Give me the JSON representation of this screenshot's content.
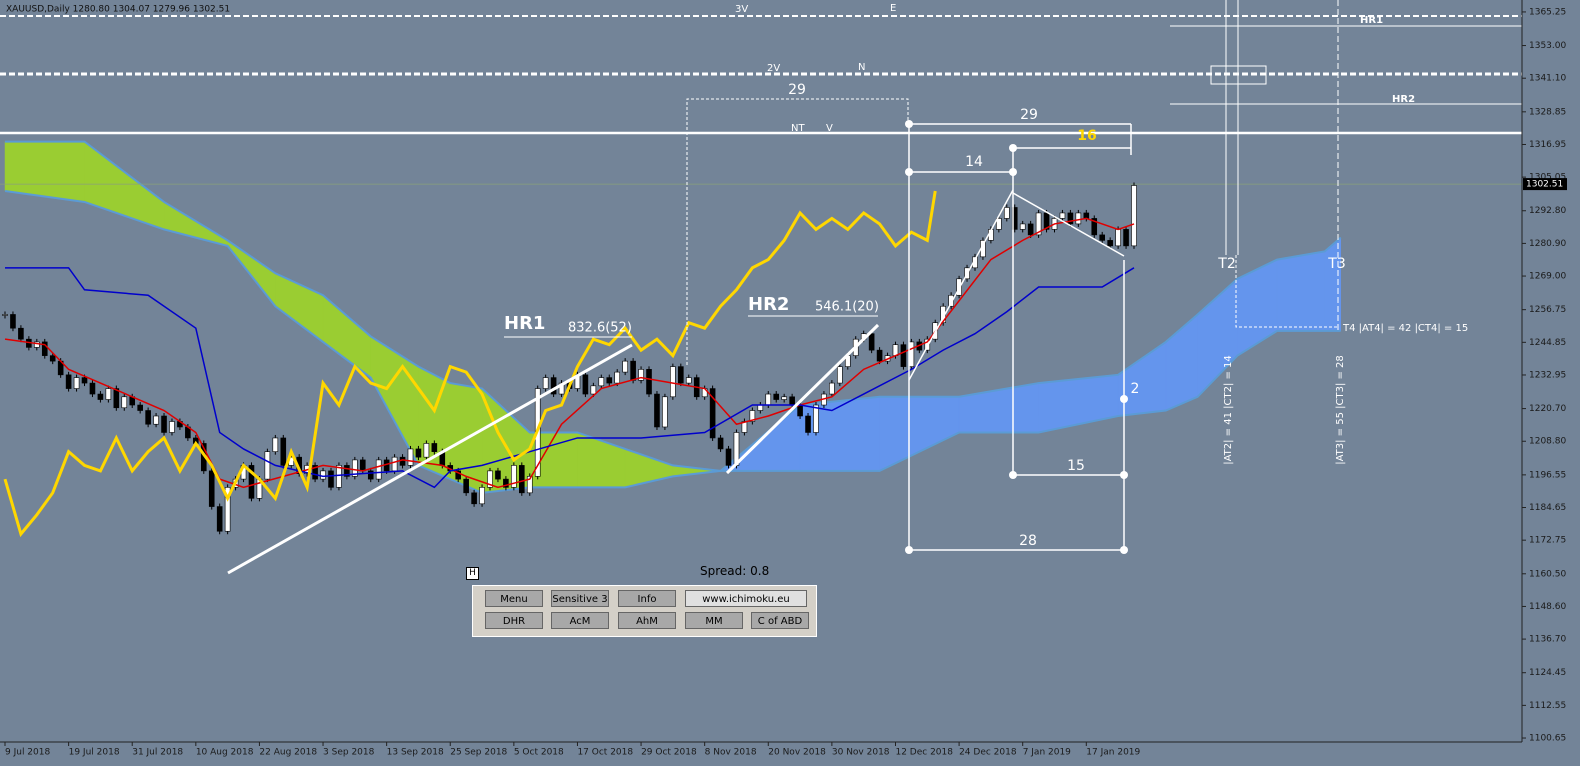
{
  "header": "XAUUSD,Daily  1280.80 1304.07 1279.96 1302.51",
  "chart_data": {
    "type": "candlestick",
    "up_color": "#ffffff",
    "down_color": "#000000",
    "close": [
      1255,
      1250,
      1246,
      1243,
      1245,
      1240,
      1238,
      1233,
      1228,
      1232,
      1230,
      1226,
      1224,
      1228,
      1221,
      1225,
      1222,
      1220,
      1215,
      1218,
      1212,
      1216,
      1214,
      1210,
      1208,
      1198,
      1185,
      1176,
      1192,
      1195,
      1200,
      1188,
      1195,
      1205,
      1210,
      1200,
      1203,
      1197,
      1200,
      1195,
      1198,
      1192,
      1200,
      1196,
      1202,
      1198,
      1195,
      1202,
      1198,
      1203,
      1200,
      1206,
      1203,
      1208,
      1205,
      1200,
      1198,
      1195,
      1190,
      1186,
      1192,
      1198,
      1195,
      1192,
      1200,
      1190,
      1196,
      1228,
      1232,
      1226,
      1230,
      1228,
      1233,
      1226,
      1229,
      1232,
      1230,
      1234,
      1238,
      1231,
      1235,
      1226,
      1214,
      1225,
      1236,
      1230,
      1232,
      1225,
      1228,
      1210,
      1206,
      1200,
      1212,
      1216,
      1220,
      1222,
      1226,
      1224,
      1225,
      1222,
      1218,
      1212,
      1222,
      1226,
      1230,
      1236,
      1240,
      1246,
      1248,
      1242,
      1238,
      1240,
      1244,
      1236,
      1245,
      1242,
      1246,
      1252,
      1258,
      1262,
      1268,
      1272,
      1276,
      1282,
      1286,
      1290,
      1294,
      1286,
      1288,
      1284,
      1292,
      1286,
      1290,
      1292,
      1288,
      1292,
      1290,
      1284,
      1282,
      1280,
      1286,
      1280,
      1302
    ],
    "last_price": 1302.51,
    "lines": [
      {
        "color": "#e00000",
        "width": 1.5,
        "x": [
          0,
          5,
          8,
          12,
          16,
          20,
          24,
          27,
          30,
          35,
          40,
          45,
          50,
          55,
          58,
          62,
          66,
          70,
          75,
          80,
          84,
          88,
          92,
          96,
          100,
          104,
          108,
          112,
          116,
          120,
          124,
          128,
          132,
          136,
          140,
          142
        ],
        "values": [
          1246,
          1244,
          1235,
          1230,
          1225,
          1220,
          1212,
          1195,
          1192,
          1196,
          1200,
          1198,
          1202,
          1200,
          1196,
          1192,
          1195,
          1215,
          1228,
          1232,
          1230,
          1228,
          1215,
          1218,
          1222,
          1225,
          1235,
          1240,
          1245,
          1260,
          1275,
          1282,
          1288,
          1290,
          1286,
          1288
        ]
      },
      {
        "color": "#0000cc",
        "width": 1.5,
        "x": [
          0,
          8,
          10,
          18,
          24,
          27,
          30,
          34,
          40,
          50,
          54,
          56,
          60,
          66,
          72,
          80,
          88,
          94,
          100,
          104,
          108,
          114,
          118,
          122,
          126,
          130,
          138,
          142
        ],
        "values": [
          1272,
          1272,
          1264,
          1262,
          1250,
          1212,
          1206,
          1200,
          1196,
          1198,
          1192,
          1198,
          1200,
          1205,
          1210,
          1210,
          1212,
          1222,
          1222,
          1220,
          1226,
          1235,
          1242,
          1248,
          1256,
          1265,
          1265,
          1272
        ]
      },
      {
        "color": "#ffd700",
        "width": 3,
        "x": [
          0,
          2,
          4,
          6,
          8,
          10,
          12,
          14,
          16,
          18,
          20,
          22,
          24,
          26,
          28,
          30,
          32,
          34,
          36,
          38,
          40,
          42,
          44,
          46,
          48,
          50,
          52,
          54,
          56,
          58,
          60,
          62,
          64,
          66,
          68,
          70,
          72,
          74,
          76,
          78,
          80,
          82,
          84,
          86,
          88,
          90,
          92,
          94,
          96,
          98,
          100,
          102,
          104,
          106,
          108,
          110,
          112,
          114,
          116,
          117
        ],
        "values": [
          1195,
          1175,
          1182,
          1190,
          1205,
          1200,
          1198,
          1210,
          1198,
          1205,
          1210,
          1198,
          1208,
          1200,
          1188,
          1200,
          1195,
          1188,
          1205,
          1192,
          1230,
          1222,
          1236,
          1230,
          1228,
          1236,
          1228,
          1220,
          1236,
          1234,
          1226,
          1212,
          1202,
          1206,
          1220,
          1222,
          1236,
          1246,
          1244,
          1250,
          1242,
          1246,
          1240,
          1252,
          1250,
          1258,
          1264,
          1272,
          1275,
          1282,
          1292,
          1286,
          1290,
          1286,
          1292,
          1288,
          1280,
          1285,
          1282,
          1300
        ]
      }
    ],
    "cloud": {
      "bull_color": "#6495ed",
      "bear_color": "#9acd32",
      "edge_color": "#5b9bd5",
      "x": [
        0,
        10,
        20,
        28,
        34,
        40,
        46,
        52,
        56,
        60,
        66,
        72,
        78,
        84,
        90,
        100,
        110,
        120,
        130,
        140,
        146,
        150,
        155,
        160,
        166,
        168
      ],
      "span_a": [
        1300,
        1296,
        1286,
        1280,
        1258,
        1245,
        1232,
        1200,
        1195,
        1190,
        1192,
        1192,
        1192,
        1196,
        1198,
        1222,
        1225,
        1225,
        1230,
        1233,
        1245,
        1255,
        1268,
        1275,
        1278,
        1283
      ],
      "span_b": [
        1318,
        1318,
        1296,
        1282,
        1270,
        1262,
        1247,
        1236,
        1230,
        1228,
        1212,
        1212,
        1206,
        1200,
        1198,
        1198,
        1198,
        1212,
        1212,
        1218,
        1220,
        1225,
        1240,
        1249,
        1249,
        1249
      ]
    },
    "xlim": [
      -0.63,
      190.8
    ],
    "xticks": [
      {
        "value": 0,
        "label": "9 Jul 2018"
      },
      {
        "value": 8,
        "label": "19 Jul 2018"
      },
      {
        "value": 16,
        "label": "31 Jul 2018"
      },
      {
        "value": 24,
        "label": "10 Aug 2018"
      },
      {
        "value": 32,
        "label": "22 Aug 2018"
      },
      {
        "value": 40,
        "label": "3 Sep 2018"
      },
      {
        "value": 48,
        "label": "13 Sep 2018"
      },
      {
        "value": 56,
        "label": "25 Sep 2018"
      },
      {
        "value": 64,
        "label": "5 Oct 2018"
      },
      {
        "value": 72,
        "label": "17 Oct 2018"
      },
      {
        "value": 80,
        "label": "29 Oct 2018"
      },
      {
        "value": 88,
        "label": "8 Nov 2018"
      },
      {
        "value": 96,
        "label": "20 Nov 2018"
      },
      {
        "value": 104,
        "label": "30 Nov 2018"
      },
      {
        "value": 112,
        "label": "12 Dec 2018"
      },
      {
        "value": 120,
        "label": "24 Dec 2018"
      },
      {
        "value": 128,
        "label": "7 Jan 2019"
      },
      {
        "value": 136,
        "label": "17 Jan 2019"
      }
    ],
    "ylim": [
      1099.2,
      1369.6
    ],
    "yticks": [
      1365.25,
      {
        "value": 1353,
        "label": "1353.00"
      },
      {
        "value": 1341.1,
        "label": "1341.10"
      },
      1328.85,
      1316.95,
      1305.05,
      {
        "value": 1292.8,
        "label": "1292.80"
      },
      {
        "value": 1280.9,
        "label": "1280.90"
      },
      {
        "value": 1269,
        "label": "1269.00"
      },
      1256.75,
      1244.85,
      1232.95,
      {
        "value": 1220.7,
        "label": "1220.70"
      },
      {
        "value": 1208.8,
        "label": "1208.80"
      },
      1196.55,
      1184.65,
      1172.75,
      {
        "value": 1160.5,
        "label": "1160.50"
      },
      {
        "value": 1148.6,
        "label": "1148.60"
      },
      {
        "value": 1136.7,
        "label": "1136.70"
      },
      1124.45,
      1112.55,
      1100.65
    ],
    "grid": false
  },
  "annotations": [
    "3V",
    "E",
    "2V",
    "N",
    "NT",
    "V",
    "HR1",
    "HR2",
    "29",
    "29",
    "16",
    "14",
    "15",
    "28",
    "2",
    "T2",
    "T3",
    "T4 |AT4| = 42 |CT4| = 15",
    "|AT2| = 41 |CT2| = 14",
    "|AT3| = 55 |CT3| = 28"
  ],
  "harmonics": [
    {
      "name": "HR1",
      "value": "832.6(52)"
    },
    {
      "name": "HR2",
      "value": "546.1(20)"
    }
  ],
  "panel": {
    "icon": "H",
    "spread": "Spread: 0.8",
    "buttons": [
      [
        "Menu",
        "Sensitive 3",
        "Info",
        "www.ichimoku.eu"
      ],
      [
        "DHR",
        "AcM",
        "AhM",
        "MM",
        "C of ABD"
      ]
    ]
  }
}
